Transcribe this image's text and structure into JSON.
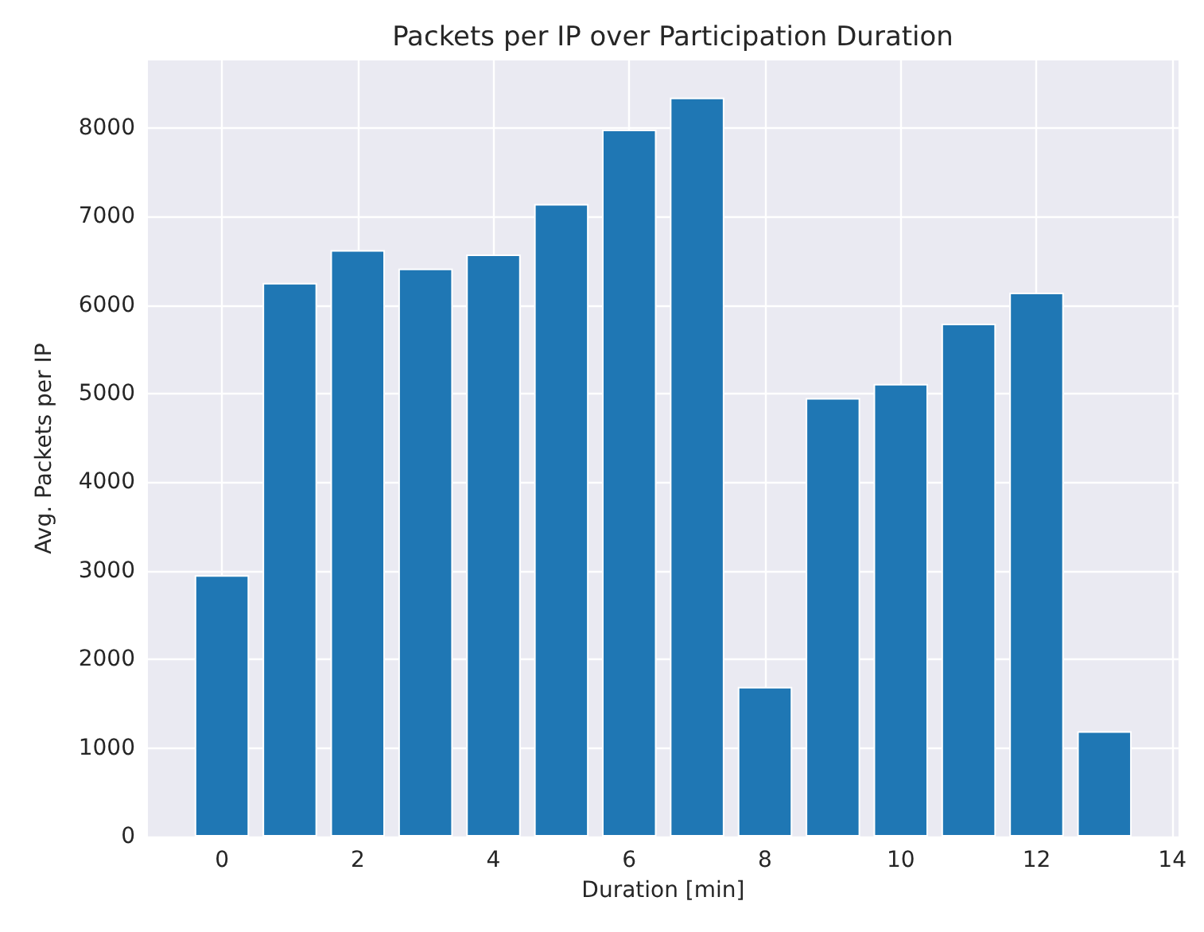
{
  "chart_data": {
    "type": "bar",
    "title": "Packets per IP over Participation Duration",
    "xlabel": "Duration [min]",
    "ylabel": "Avg. Packets per IP",
    "x": [
      0,
      1,
      2,
      3,
      4,
      5,
      6,
      7,
      8,
      9,
      10,
      11,
      12,
      13
    ],
    "values": [
      2950,
      6250,
      6620,
      6410,
      6570,
      7140,
      7980,
      8340,
      1690,
      4950,
      5110,
      5790,
      6140,
      1190
    ],
    "color": "#1f77b4",
    "xlim": [
      -1.09,
      14.09
    ],
    "xticks": [
      0,
      2,
      4,
      6,
      8,
      10,
      12,
      14
    ],
    "ylim": [
      0,
      8760
    ],
    "yticks": [
      0,
      1000,
      2000,
      3000,
      4000,
      5000,
      6000,
      7000,
      8000
    ],
    "grid": true
  }
}
